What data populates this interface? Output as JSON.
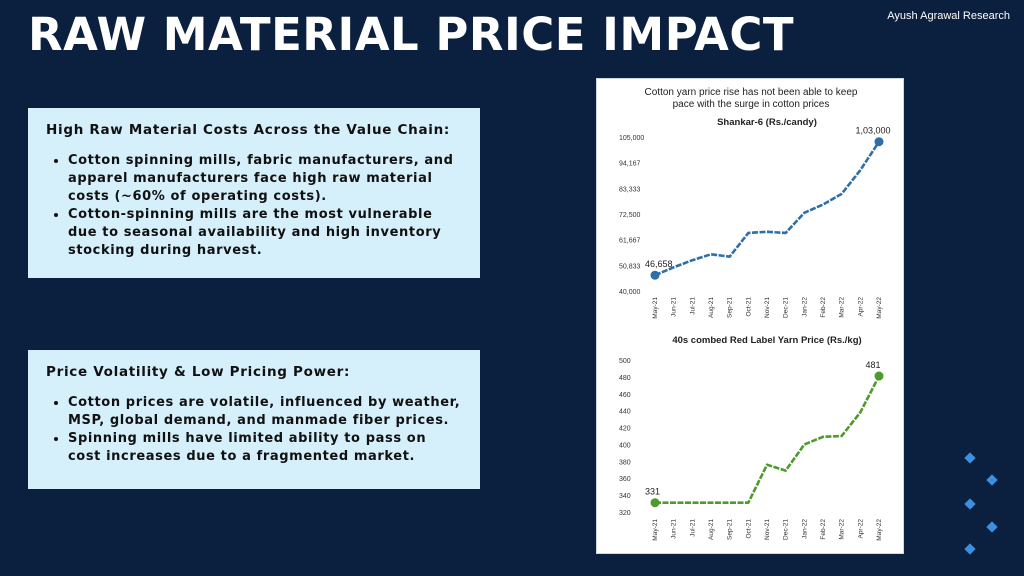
{
  "header": {
    "title": "RAW MATERIAL PRICE IMPACT",
    "watermark": "Ayush Agrawal Research"
  },
  "box1": {
    "heading": "High Raw Material Costs Across the Value Chain:",
    "bullets": [
      "Cotton spinning mills, fabric manufacturers, and apparel manufacturers face high raw material costs (~60% of operating costs).",
      "Cotton-spinning mills are the most vulnerable due to seasonal availability and high inventory stocking during harvest."
    ]
  },
  "box2": {
    "heading": "Price Volatility & Low Pricing Power:",
    "bullets": [
      "Cotton prices are volatile, influenced by weather, MSP, global demand, and manmade fiber prices.",
      "Spinning mills have limited ability to pass on cost increases due to a fragmented market."
    ]
  },
  "panel": {
    "headline_line1": "Cotton yarn price rise has not been able to keep",
    "headline_line2": "pace with the surge in cotton prices"
  },
  "chart_data": [
    {
      "type": "line",
      "title": "Shankar-6 (Rs./candy)",
      "color": "#2f6fa8",
      "categories": [
        "May-21",
        "Jun-21",
        "Jul-21",
        "Aug-21",
        "Sep-21",
        "Oct-21",
        "Nov-21",
        "Dec-21",
        "Jan-22",
        "Feb-22",
        "Mar-22",
        "Apr-22",
        "May-22"
      ],
      "values": [
        46658,
        50000,
        53000,
        55500,
        54500,
        64500,
        65000,
        64500,
        73000,
        76500,
        81000,
        91000,
        103000
      ],
      "yticks": [
        "40,000",
        "50,833",
        "61,667",
        "72,500",
        "83,333",
        "94,167",
        "105,000"
      ],
      "ylim": [
        40000,
        105000
      ],
      "annotations": [
        {
          "index": 0,
          "label": "46,658"
        },
        {
          "index": 12,
          "label": "1,03,000"
        }
      ]
    },
    {
      "type": "line",
      "title": "40s combed Red Label Yarn Price (Rs./kg)",
      "color": "#4e9a2c",
      "categories": [
        "May-21",
        "Jun-21",
        "Jul-21",
        "Aug-21",
        "Sep-21",
        "Oct-21",
        "Nov-21",
        "Dec-21",
        "Jan-22",
        "Feb-22",
        "Mar-22",
        "Apr-22",
        "May-22"
      ],
      "values": [
        331,
        331,
        331,
        331,
        331,
        331,
        376,
        369,
        400,
        409,
        410,
        438,
        481
      ],
      "yticks": [
        "320",
        "340",
        "360",
        "380",
        "400",
        "420",
        "440",
        "460",
        "480",
        "500"
      ],
      "ylim": [
        320,
        500
      ],
      "annotations": [
        {
          "index": 0,
          "label": "331"
        },
        {
          "index": 12,
          "label": "481"
        }
      ]
    }
  ]
}
